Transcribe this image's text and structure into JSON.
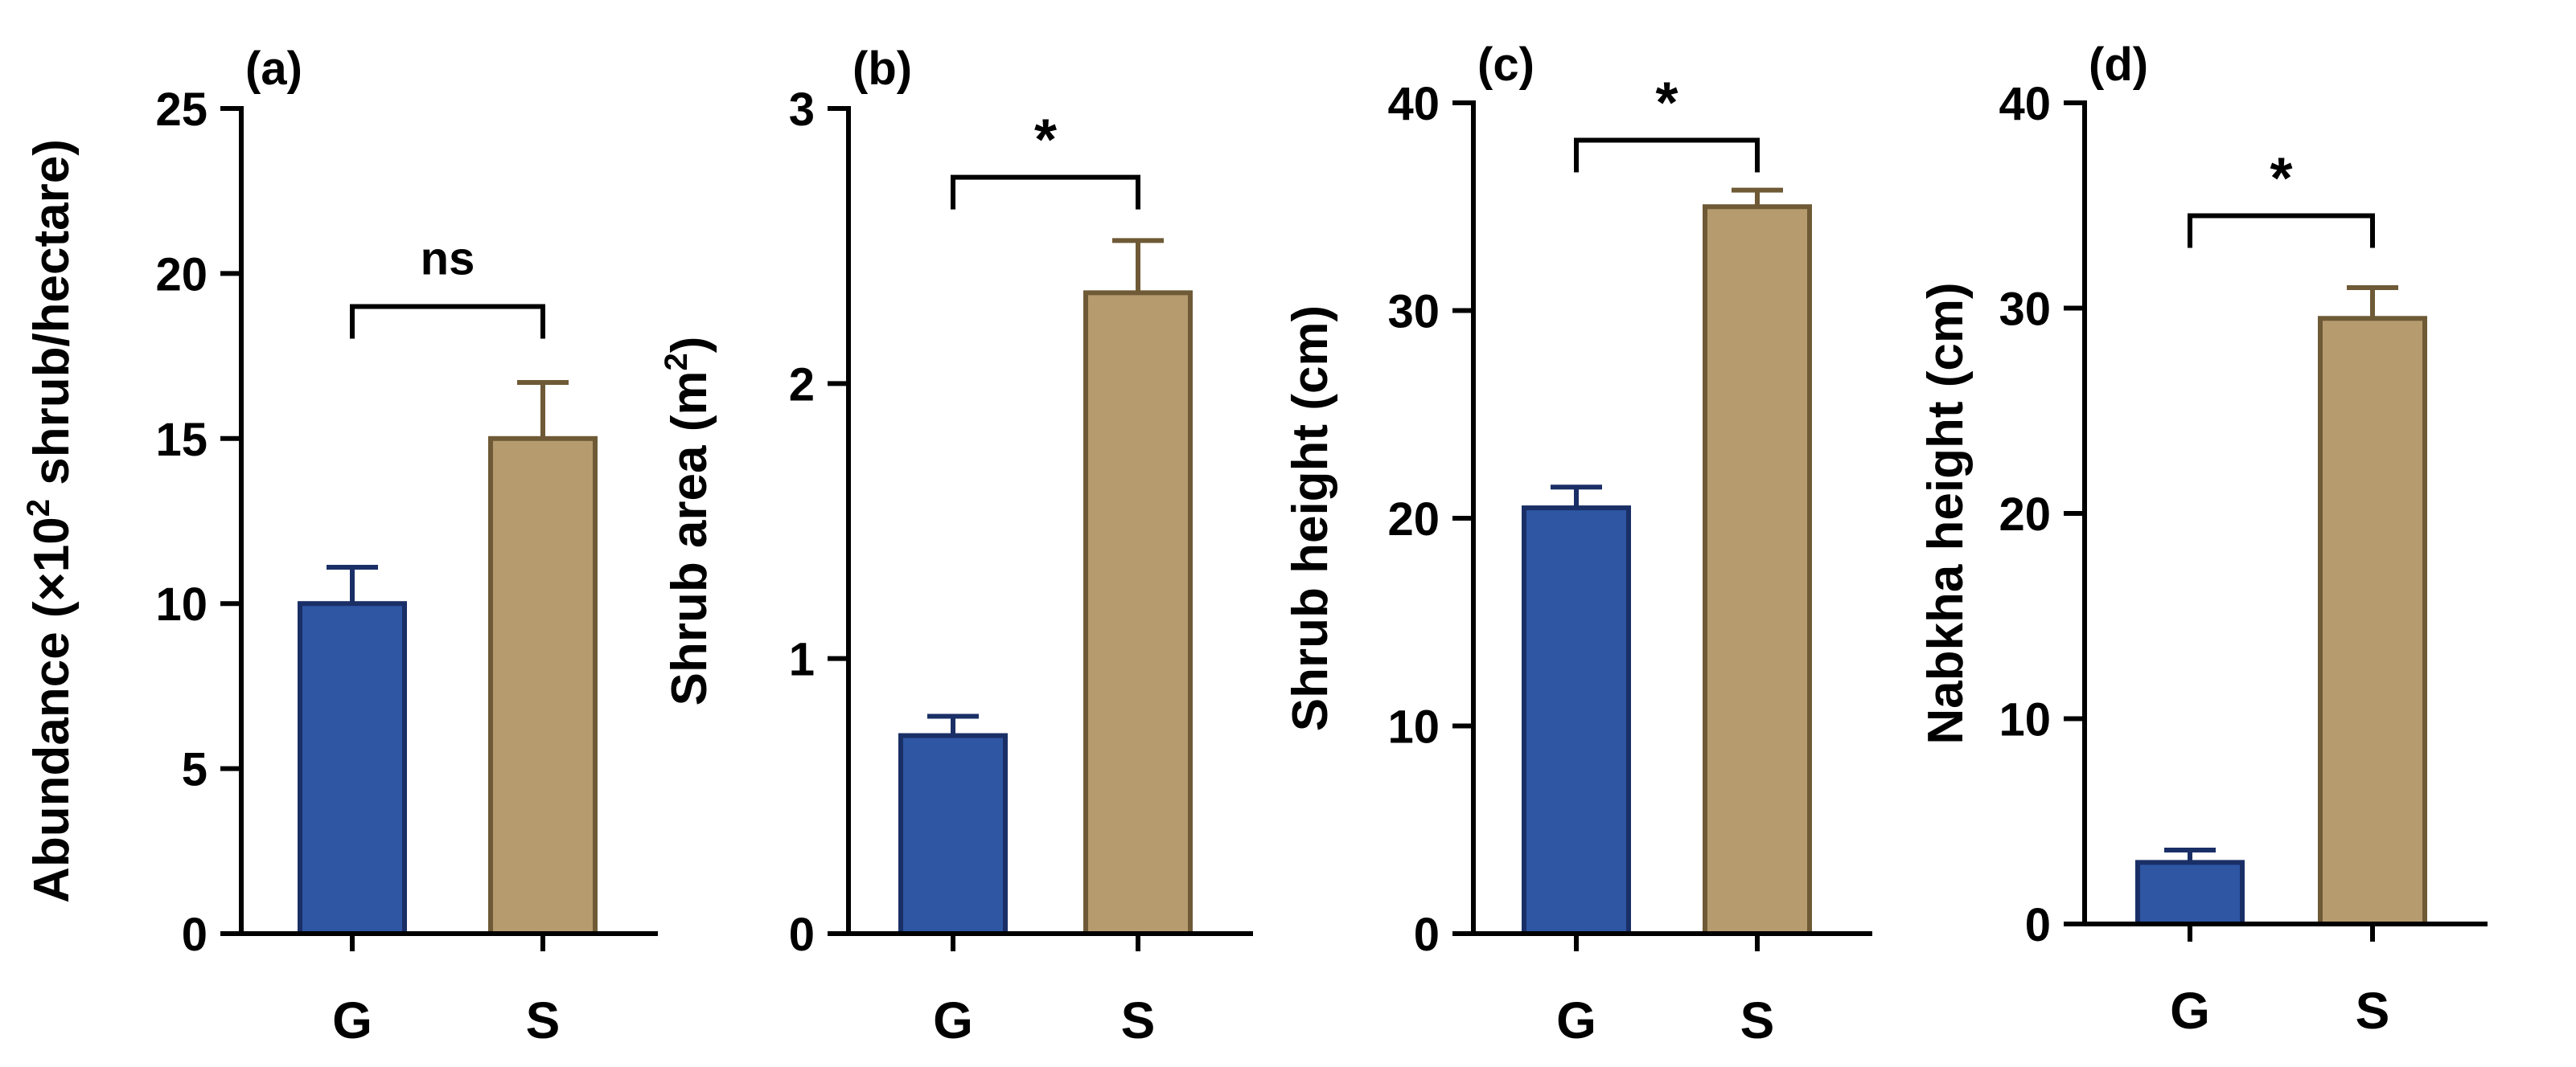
{
  "colors": {
    "G": "#2e56a3",
    "G_edge": "#1a2f66",
    "S": "#b59b6e",
    "S_edge": "#6e5a36"
  },
  "chart_data": [
    {
      "type": "bar",
      "panel": "(a)",
      "categories": [
        "G",
        "S"
      ],
      "values": [
        10.0,
        15.0
      ],
      "errors": [
        1.1,
        1.7
      ],
      "ylabel_main": "Abundance (×10",
      "ylabel_sup": "2",
      "ylabel_rest": " shrub/hectare)",
      "ylim": [
        0,
        25
      ],
      "yticks": [
        "0",
        "5",
        "10",
        "15",
        "20",
        "25"
      ],
      "significance": "ns",
      "bracket_level": 19.0
    },
    {
      "type": "bar",
      "panel": "(b)",
      "categories": [
        "G",
        "S"
      ],
      "values": [
        0.72,
        2.33
      ],
      "errors": [
        0.07,
        0.19
      ],
      "ylabel_main": "Shrub area (m",
      "ylabel_sup": "2",
      "ylabel_rest": ")",
      "ylim": [
        0,
        3
      ],
      "yticks": [
        "0",
        "1",
        "2",
        "3"
      ],
      "significance": "*",
      "bracket_level": 2.75
    },
    {
      "type": "bar",
      "panel": "(c)",
      "categories": [
        "G",
        "S"
      ],
      "values": [
        20.5,
        35.0
      ],
      "errors": [
        1.0,
        0.8
      ],
      "ylabel_main": "Shrub height (cm)",
      "ylabel_sup": "",
      "ylabel_rest": "",
      "ylim": [
        0,
        40
      ],
      "yticks": [
        "0",
        "10",
        "20",
        "30",
        "40"
      ],
      "significance": "*",
      "bracket_level": 38.2
    },
    {
      "type": "bar",
      "panel": "(d)",
      "categories": [
        "G",
        "S"
      ],
      "values": [
        3.0,
        29.5
      ],
      "errors": [
        0.6,
        1.5
      ],
      "ylabel_main": "Nabkha height (cm)",
      "ylabel_sup": "",
      "ylabel_rest": "",
      "ylim": [
        0,
        40
      ],
      "yticks": [
        "0",
        "10",
        "20",
        "30",
        "40"
      ],
      "significance": "*",
      "bracket_level": 34.5
    }
  ]
}
